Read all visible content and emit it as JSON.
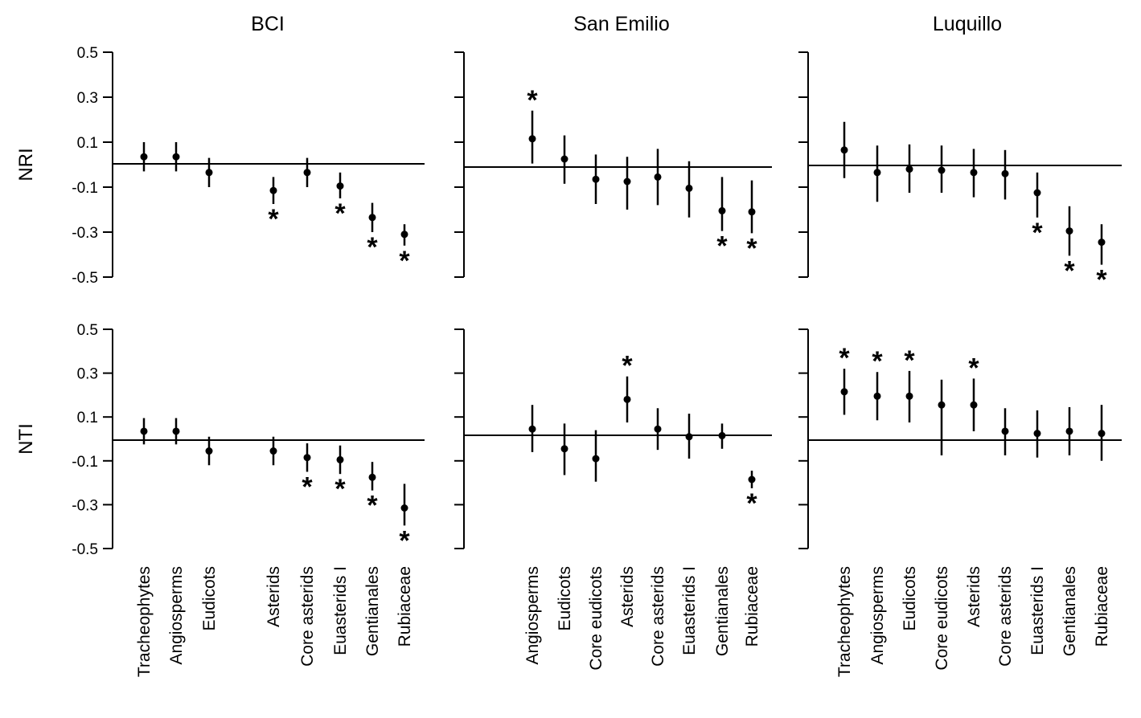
{
  "chart_data": {
    "type": "scatter",
    "row_labels": [
      "NRI",
      "NTI"
    ],
    "y_ticks": [
      "0.5",
      "0.3",
      "0.1",
      "-0.1",
      "-0.3",
      "-0.5"
    ],
    "ylim": [
      -0.5,
      0.5
    ],
    "grid": false,
    "legend": "none",
    "panels": [
      {
        "title": "BCI",
        "categories": [
          "Tracheophytes",
          "Angiosperms",
          "Eudicots",
          "Asterids",
          "Core asterids",
          "Euasterids I",
          "Gentianales",
          "Rubiaceae"
        ],
        "NRI": {
          "values": [
            0.035,
            0.035,
            -0.035,
            -0.115,
            -0.035,
            -0.095,
            -0.235,
            -0.31
          ],
          "lower": [
            -0.03,
            -0.03,
            -0.1,
            -0.175,
            -0.1,
            -0.15,
            -0.3,
            -0.36
          ],
          "upper": [
            0.1,
            0.1,
            0.03,
            -0.055,
            0.03,
            -0.035,
            -0.17,
            -0.265
          ],
          "significant": [
            false,
            false,
            false,
            true,
            false,
            true,
            true,
            true
          ]
        },
        "NTI": {
          "values": [
            0.035,
            0.035,
            -0.055,
            -0.055,
            -0.085,
            -0.095,
            -0.175,
            -0.315
          ],
          "lower": [
            -0.025,
            -0.025,
            -0.12,
            -0.12,
            -0.15,
            -0.16,
            -0.235,
            -0.395
          ],
          "upper": [
            0.095,
            0.095,
            0.01,
            0.01,
            -0.02,
            -0.03,
            -0.105,
            -0.205
          ],
          "significant": [
            false,
            false,
            false,
            false,
            true,
            true,
            true,
            true
          ]
        }
      },
      {
        "title": "San Emilio",
        "categories": [
          "Angiosperms",
          "Eudicots",
          "Core eudicots",
          "Asterids",
          "Core asterids",
          "Euasterids I",
          "Gentianales",
          "Rubiaceae"
        ],
        "NRI": {
          "values": [
            0.115,
            0.025,
            -0.065,
            -0.075,
            -0.055,
            -0.105,
            -0.205,
            -0.21
          ],
          "lower": [
            0.005,
            -0.085,
            -0.175,
            -0.2,
            -0.18,
            -0.235,
            -0.295,
            -0.305
          ],
          "upper": [
            0.24,
            0.13,
            0.045,
            0.035,
            0.07,
            0.015,
            -0.055,
            -0.07
          ],
          "significant": [
            true,
            false,
            false,
            false,
            false,
            false,
            true,
            true
          ]
        },
        "NTI": {
          "values": [
            0.045,
            -0.045,
            -0.09,
            0.18,
            0.045,
            0.01,
            0.015,
            -0.185
          ],
          "lower": [
            -0.06,
            -0.165,
            -0.195,
            0.075,
            -0.05,
            -0.09,
            -0.045,
            -0.225
          ],
          "upper": [
            0.155,
            0.07,
            0.04,
            0.285,
            0.14,
            0.115,
            0.07,
            -0.145
          ],
          "significant": [
            false,
            false,
            false,
            true,
            false,
            false,
            false,
            true
          ]
        }
      },
      {
        "title": "Luquillo",
        "categories": [
          "Tracheophytes",
          "Angiosperms",
          "Eudicots",
          "Core eudicots",
          "Asterids",
          "Core asterids",
          "Euasterids I",
          "Gentianales",
          "Rubiaceae"
        ],
        "NRI": {
          "values": [
            0.065,
            -0.035,
            -0.02,
            -0.025,
            -0.035,
            -0.04,
            -0.125,
            -0.295,
            -0.345
          ],
          "lower": [
            -0.06,
            -0.165,
            -0.125,
            -0.125,
            -0.145,
            -0.155,
            -0.235,
            -0.405,
            -0.445
          ],
          "upper": [
            0.19,
            0.085,
            0.09,
            0.085,
            0.07,
            0.065,
            -0.035,
            -0.185,
            -0.265
          ],
          "significant": [
            false,
            false,
            false,
            false,
            false,
            false,
            true,
            true,
            true
          ]
        },
        "NTI": {
          "values": [
            0.215,
            0.195,
            0.195,
            0.155,
            0.155,
            0.035,
            0.025,
            0.035,
            0.025
          ],
          "lower": [
            0.11,
            0.085,
            0.075,
            -0.075,
            0.035,
            -0.075,
            -0.085,
            -0.075,
            -0.1
          ],
          "upper": [
            0.32,
            0.305,
            0.31,
            0.27,
            0.275,
            0.14,
            0.13,
            0.145,
            0.155
          ],
          "significant": [
            true,
            true,
            true,
            false,
            true,
            false,
            false,
            false,
            false
          ]
        }
      }
    ]
  }
}
